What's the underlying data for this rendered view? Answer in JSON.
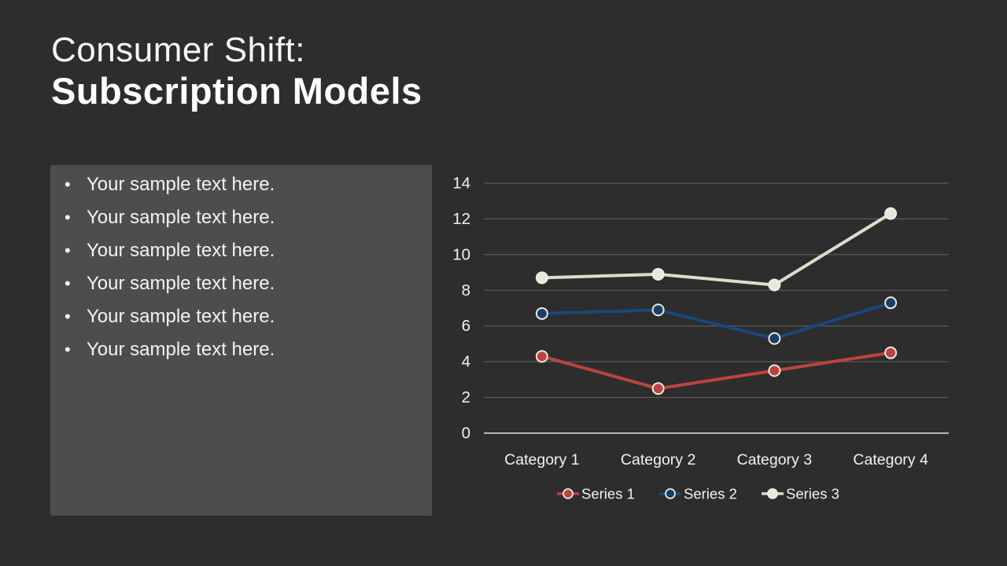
{
  "title": {
    "line1": "Consumer Shift:",
    "line2": "Subscription Models"
  },
  "bullets": [
    "Your sample text here.",
    "Your sample text here.",
    "Your sample text here.",
    "Your sample text here.",
    "Your sample text here.",
    "Your sample text here."
  ],
  "colors": {
    "background": "#2d2d2d",
    "panel": "#4d4d4d",
    "text": "#f2f2f2",
    "grid": "#8a8a8a",
    "axis_line": "#e3e3e3",
    "series1_red": "#bb4342",
    "series2_blue": "#1b477a",
    "series3_cream": "#dddbcb",
    "marker_stroke_light": "#ebe9dd"
  },
  "chart_data": {
    "type": "line",
    "title": "",
    "xlabel": "",
    "ylabel": "",
    "categories": [
      "Category 1",
      "Category 2",
      "Category 3",
      "Category 4"
    ],
    "series": [
      {
        "name": "Series 1",
        "color": "#bb4342",
        "marker_fill": "#bb4342",
        "marker_stroke": "#ebe9dd",
        "values": [
          4.3,
          2.5,
          3.5,
          4.5
        ]
      },
      {
        "name": "Series 2",
        "color": "#1b477a",
        "marker_fill": "#1c3e66",
        "marker_stroke": "#ebe9dd",
        "values": [
          6.7,
          6.9,
          5.3,
          7.3
        ]
      },
      {
        "name": "Series 3",
        "color": "#dddbcb",
        "marker_fill": "#e9e7d9",
        "marker_stroke": "#efeee4",
        "values": [
          8.7,
          8.9,
          8.3,
          12.3
        ]
      }
    ],
    "ylim": [
      0,
      14
    ],
    "yticks": [
      0,
      2,
      4,
      6,
      8,
      10,
      12,
      14
    ],
    "grid": true,
    "legend_position": "bottom"
  }
}
